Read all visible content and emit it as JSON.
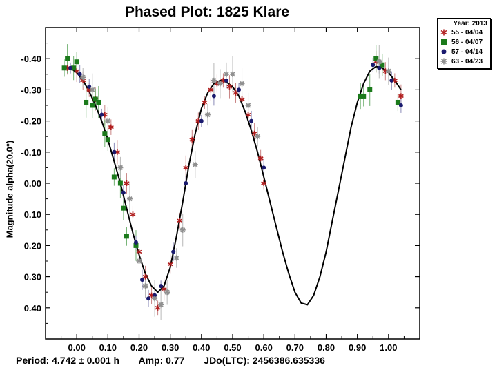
{
  "chart_data": {
    "type": "scatter",
    "title": "Phased Plot: 1825 Klare",
    "xlabel": "",
    "ylabel": "Magnitude alpha(20.0°)",
    "xlim": [
      -0.1,
      1.1
    ],
    "ylim": [
      -0.5,
      0.5
    ],
    "y_inverted": true,
    "xticks": [
      "0.00",
      "0.10",
      "0.20",
      "0.30",
      "0.40",
      "0.50",
      "0.60",
      "0.70",
      "0.80",
      "0.90",
      "1.00"
    ],
    "xtick_values": [
      0.0,
      0.1,
      0.2,
      0.3,
      0.4,
      0.5,
      0.6,
      0.7,
      0.8,
      0.9,
      1.0
    ],
    "yticks": [
      "-0.40",
      "-0.30",
      "-0.20",
      "-0.10",
      "0.00",
      "0.10",
      "0.20",
      "0.30",
      "0.40"
    ],
    "ytick_values": [
      -0.4,
      -0.3,
      -0.2,
      -0.1,
      0.0,
      0.1,
      0.2,
      0.3,
      0.4
    ],
    "legend_title": "Year: 2013",
    "legend_position": "outside-top-right",
    "series": [
      {
        "name": "55 - 04/04",
        "marker": "asterisk",
        "color": "#b01e1e",
        "x": [
          -0.03,
          0.0,
          0.02,
          0.04,
          0.06,
          0.09,
          0.11,
          0.13,
          0.16,
          0.18,
          0.2,
          0.22,
          0.24,
          0.26,
          0.28,
          0.3,
          0.33,
          0.35,
          0.37,
          0.39,
          0.41,
          0.43,
          0.45,
          0.47,
          0.49,
          0.51,
          0.53,
          0.55,
          0.57,
          0.59,
          0.6,
          0.96,
          0.99,
          1.02,
          1.04
        ],
        "y": [
          -0.37,
          -0.36,
          -0.33,
          -0.3,
          -0.27,
          -0.22,
          -0.18,
          -0.1,
          0.0,
          0.1,
          0.22,
          0.3,
          0.36,
          0.4,
          0.34,
          0.26,
          0.12,
          -0.05,
          -0.14,
          -0.2,
          -0.26,
          -0.3,
          -0.32,
          -0.33,
          -0.31,
          -0.29,
          -0.27,
          -0.22,
          -0.16,
          -0.08,
          0.0,
          -0.39,
          -0.36,
          -0.33,
          -0.28
        ]
      },
      {
        "name": "56 - 04/07",
        "marker": "square",
        "color": "#1b7a1b",
        "x": [
          -0.04,
          -0.03,
          -0.01,
          0.0,
          0.03,
          0.05,
          0.06,
          0.07,
          0.09,
          0.1,
          0.12,
          0.14,
          0.15,
          0.16,
          0.19,
          0.91,
          0.92,
          0.94,
          0.96,
          0.98,
          1.03
        ],
        "y": [
          -0.37,
          -0.4,
          -0.37,
          -0.39,
          -0.26,
          -0.25,
          -0.27,
          -0.26,
          -0.16,
          -0.14,
          -0.02,
          0.0,
          0.08,
          0.17,
          0.2,
          -0.28,
          -0.28,
          -0.3,
          -0.4,
          -0.38,
          -0.26
        ]
      },
      {
        "name": "57 - 04/14",
        "marker": "circle",
        "color": "#1a1a6e",
        "x": [
          -0.02,
          0.01,
          0.04,
          0.08,
          0.12,
          0.15,
          0.19,
          0.21,
          0.23,
          0.25,
          0.27,
          0.31,
          0.35,
          0.4,
          0.44,
          0.48,
          0.52,
          0.56,
          0.6,
          0.95,
          0.97,
          1.01,
          1.04
        ],
        "y": [
          -0.37,
          -0.35,
          -0.31,
          -0.22,
          -0.1,
          0.03,
          0.19,
          0.31,
          0.37,
          0.36,
          0.33,
          0.22,
          0.0,
          -0.2,
          -0.28,
          -0.33,
          -0.3,
          -0.2,
          -0.05,
          -0.38,
          -0.37,
          -0.33,
          -0.25
        ]
      },
      {
        "name": "63 - 04/23",
        "marker": "star",
        "color": "#909090",
        "x": [
          0.02,
          0.05,
          0.1,
          0.14,
          0.17,
          0.2,
          0.22,
          0.25,
          0.27,
          0.29,
          0.32,
          0.34,
          0.38,
          0.42,
          0.44,
          0.46,
          0.48,
          0.5,
          0.53,
          0.55,
          0.58,
          0.97,
          1.0
        ],
        "y": [
          -0.34,
          -0.3,
          -0.2,
          -0.05,
          0.05,
          0.25,
          0.33,
          0.37,
          0.39,
          0.35,
          0.24,
          0.15,
          -0.06,
          -0.22,
          -0.33,
          -0.32,
          -0.35,
          -0.35,
          -0.32,
          -0.25,
          -0.15,
          -0.39,
          -0.36
        ]
      }
    ],
    "fit_curve": {
      "name": "Fourier fit",
      "color": "#000000",
      "x": [
        -0.04,
        -0.02,
        0.0,
        0.02,
        0.04,
        0.06,
        0.08,
        0.1,
        0.12,
        0.14,
        0.16,
        0.18,
        0.2,
        0.22,
        0.24,
        0.26,
        0.28,
        0.3,
        0.32,
        0.34,
        0.36,
        0.38,
        0.4,
        0.42,
        0.44,
        0.46,
        0.48,
        0.5,
        0.52,
        0.54,
        0.56,
        0.58,
        0.6,
        0.62,
        0.64,
        0.66,
        0.68,
        0.7,
        0.72,
        0.74,
        0.76,
        0.78,
        0.8,
        0.82,
        0.84,
        0.86,
        0.88,
        0.9,
        0.92,
        0.94,
        0.96,
        0.98,
        1.0,
        1.02,
        1.04
      ],
      "y": [
        -0.375,
        -0.37,
        -0.355,
        -0.33,
        -0.295,
        -0.25,
        -0.2,
        -0.14,
        -0.07,
        0.0,
        0.08,
        0.16,
        0.23,
        0.29,
        0.33,
        0.35,
        0.33,
        0.27,
        0.17,
        0.06,
        -0.06,
        -0.16,
        -0.24,
        -0.29,
        -0.32,
        -0.33,
        -0.325,
        -0.31,
        -0.28,
        -0.23,
        -0.17,
        -0.1,
        -0.02,
        0.06,
        0.14,
        0.22,
        0.29,
        0.35,
        0.385,
        0.39,
        0.36,
        0.3,
        0.22,
        0.12,
        0.02,
        -0.08,
        -0.18,
        -0.26,
        -0.32,
        -0.36,
        -0.375,
        -0.37,
        -0.355,
        -0.33,
        -0.3
      ]
    }
  },
  "footer": {
    "period": "Period: 4.742 ± 0.001 h",
    "amp": "Amp: 0.77",
    "jd": "JDo(LTC): 2456386.635336"
  }
}
